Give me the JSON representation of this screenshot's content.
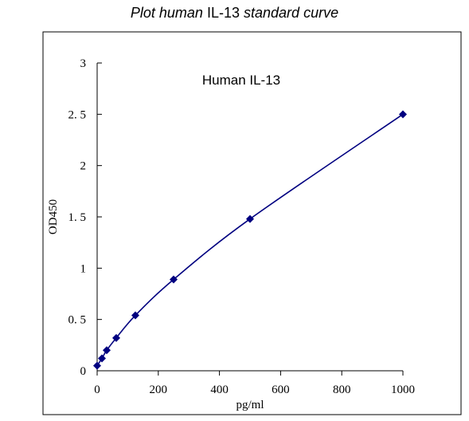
{
  "title": {
    "part1": "Plot human",
    "part2": "IL-13",
    "part3": "standard curve"
  },
  "chart_data": {
    "type": "scatter",
    "title": "Plot human IL-13 standard curve",
    "annotation": "Human IL-13",
    "xlabel": "pg/ml",
    "ylabel": "OD450",
    "xlim": [
      0,
      1000
    ],
    "ylim": [
      0,
      3
    ],
    "x_ticks": [
      0,
      200,
      400,
      600,
      800,
      1000
    ],
    "y_ticks": [
      0,
      0.5,
      1,
      1.5,
      2,
      2.5,
      3
    ],
    "y_tick_labels": [
      "0",
      "0. 5",
      "1",
      "1. 5",
      "2",
      "2. 5",
      "3"
    ],
    "grid": false,
    "colors": {
      "series": "#000080"
    },
    "series": [
      {
        "x": [
          0,
          15.6,
          31.25,
          62.5,
          125,
          250,
          500,
          1000
        ],
        "y": [
          0.05,
          0.12,
          0.2,
          0.32,
          0.54,
          0.89,
          1.48,
          2.5
        ]
      }
    ],
    "curve": "smooth"
  }
}
